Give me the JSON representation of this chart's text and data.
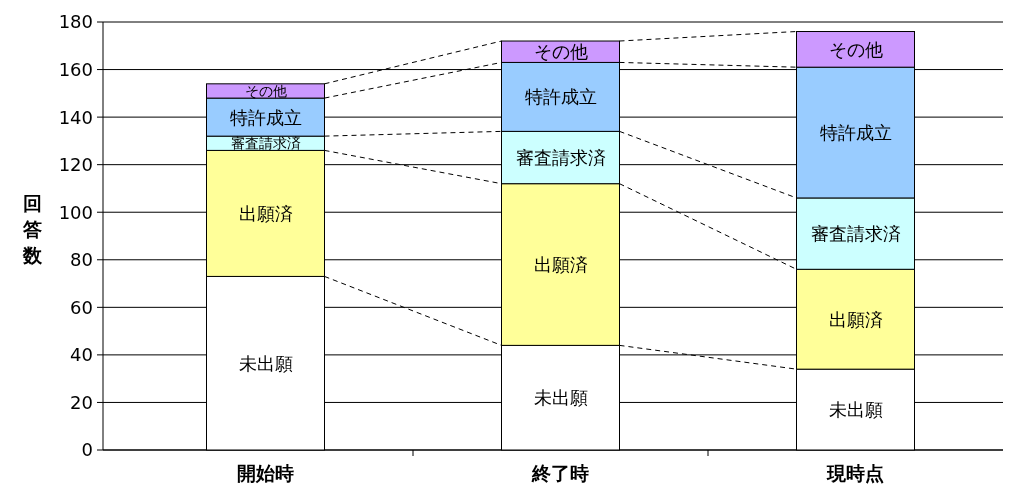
{
  "chart_data": {
    "type": "bar",
    "stacked": true,
    "ylabel": "回答数",
    "categories": [
      "開始時",
      "終了時",
      "現時点"
    ],
    "series": [
      {
        "name": "未出願",
        "color": "#ffffff",
        "values": [
          73,
          44,
          34
        ]
      },
      {
        "name": "出願済",
        "color": "#ffff99",
        "values": [
          53,
          68,
          42
        ]
      },
      {
        "name": "審査請求済",
        "color": "#ccffff",
        "values": [
          6,
          22,
          30
        ]
      },
      {
        "name": "特許成立",
        "color": "#99ccff",
        "values": [
          16,
          29,
          55
        ]
      },
      {
        "name": "その他",
        "color": "#cc99ff",
        "values": [
          6,
          9,
          15
        ]
      }
    ],
    "ylim": [
      0,
      180
    ],
    "yticks": [
      0,
      20,
      40,
      60,
      80,
      100,
      120,
      140,
      160,
      180
    ],
    "grid": "y"
  }
}
